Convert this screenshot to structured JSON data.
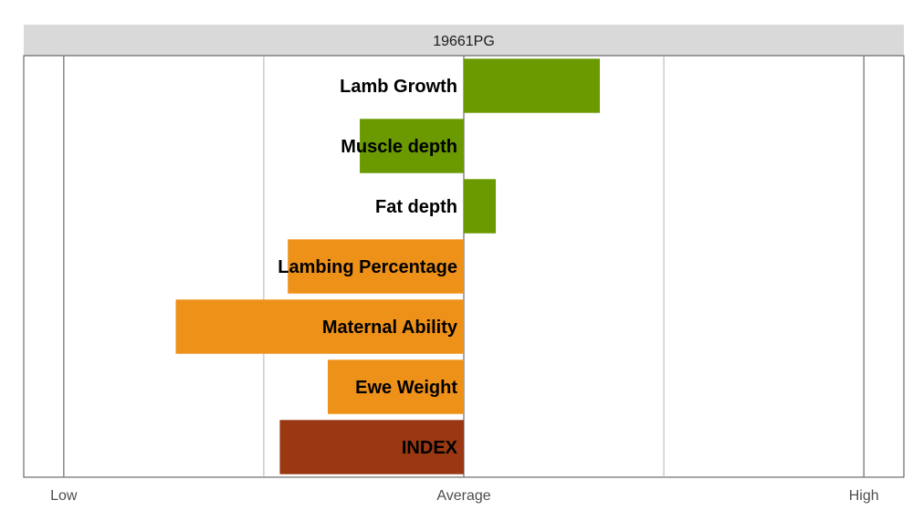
{
  "chart_data": {
    "type": "bar",
    "orientation": "horizontal",
    "title": "19661PG",
    "categories": [
      "Lamb Growth",
      "Muscle depth",
      "Fat depth",
      "Lambing Percentage",
      "Maternal Ability",
      "Ewe Weight",
      "INDEX"
    ],
    "values": [
      0.34,
      -0.26,
      0.08,
      -0.44,
      -0.72,
      -0.34,
      -0.46
    ],
    "bar_colors": [
      "#6a9a00",
      "#6a9a00",
      "#6a9a00",
      "#ee9119",
      "#ee9119",
      "#ee9119",
      "#993812"
    ],
    "xlim": [
      -1.1,
      1.1
    ],
    "x_ticks": [
      {
        "value": -1,
        "label": "Low"
      },
      {
        "value": 0,
        "label": "Average"
      },
      {
        "value": 1,
        "label": "High"
      }
    ],
    "minor_gridlines": [
      -0.5,
      0.5
    ],
    "grid": true,
    "legend": "none"
  }
}
